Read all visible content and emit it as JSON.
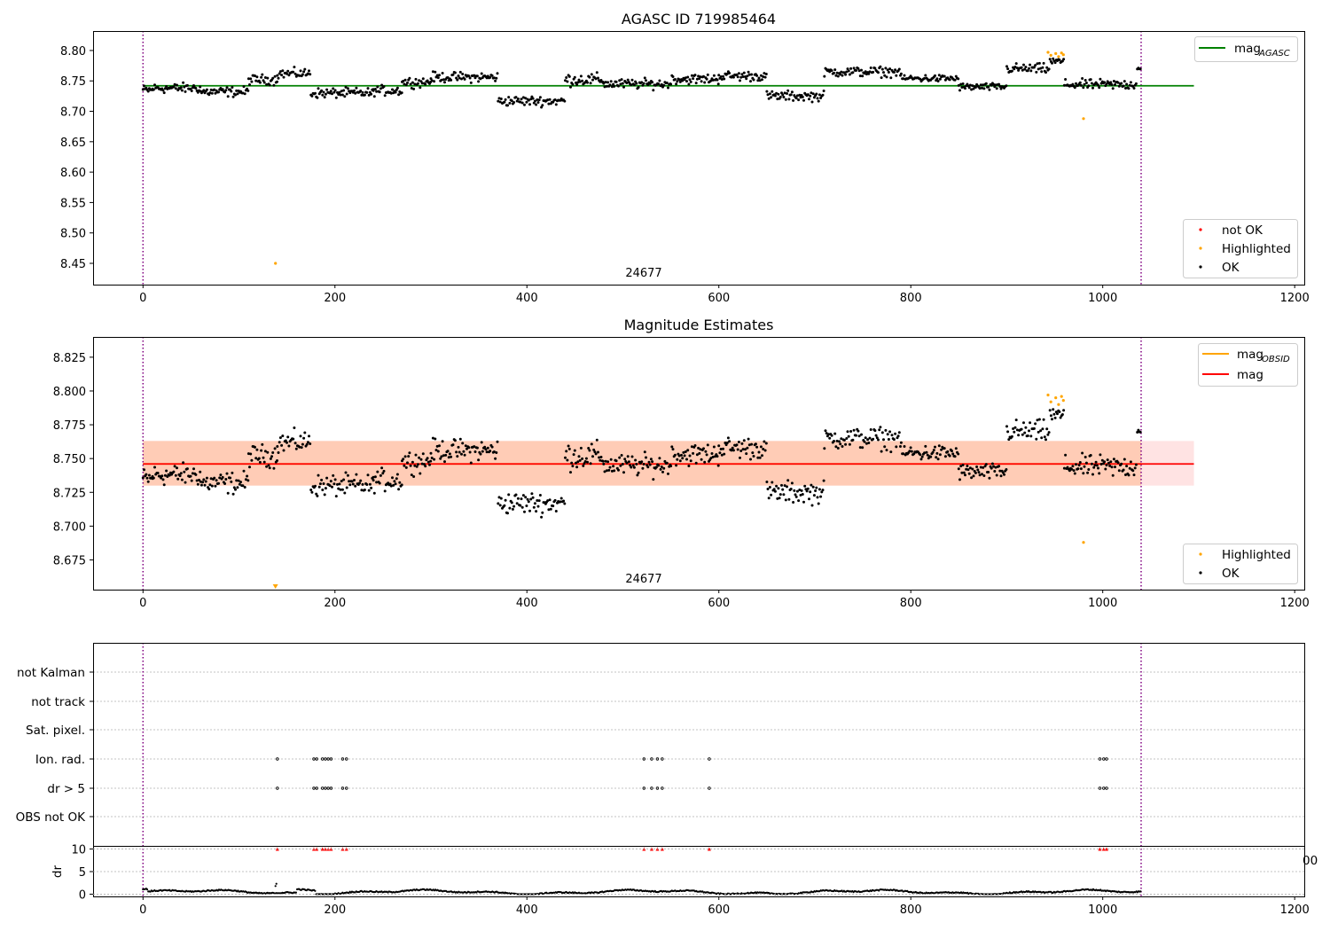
{
  "chart_data": [
    {
      "type": "scatter",
      "title": "AGASC ID 719985464",
      "obsid_label": "24677",
      "xlim": [
        -52,
        1210
      ],
      "ylim": [
        8.415,
        8.832
      ],
      "xticks": [
        "0",
        "200",
        "400",
        "600",
        "800",
        "1000",
        "1200"
      ],
      "yticks": [
        "8.45",
        "8.50",
        "8.55",
        "8.60",
        "8.65",
        "8.70",
        "8.75",
        "8.80"
      ],
      "vlines": [
        0,
        1040
      ],
      "hlines": [
        {
          "name": "magAGASC",
          "y": 8.742,
          "x_range": [
            0,
            1095
          ],
          "color": "#008000"
        }
      ],
      "legend_lines": [
        {
          "label_main": "mag",
          "label_sub": "AGASC",
          "color": "#008000"
        }
      ],
      "legend_points": [
        {
          "label": "not OK",
          "color": "#ff0000"
        },
        {
          "label": "Highlighted",
          "color": "#ffa500"
        },
        {
          "label": "OK",
          "color": "#000000"
        }
      ],
      "series": [
        {
          "name": "OK",
          "segments": [
            {
              "x_range": [
                0,
                10
              ],
              "base": 8.735,
              "noise": 0.008
            },
            {
              "x_range": [
                10,
                60
              ],
              "base": 8.738,
              "noise": 0.008
            },
            {
              "x_range": [
                60,
                110
              ],
              "base": 8.732,
              "noise": 0.008
            },
            {
              "x_range": [
                110,
                140
              ],
              "base": 8.752,
              "noise": 0.008
            },
            {
              "x_range": [
                140,
                175
              ],
              "base": 8.762,
              "noise": 0.008
            },
            {
              "x_range": [
                175,
                240
              ],
              "base": 8.73,
              "noise": 0.008
            },
            {
              "x_range": [
                240,
                270
              ],
              "base": 8.734,
              "noise": 0.008
            },
            {
              "x_range": [
                270,
                300
              ],
              "base": 8.748,
              "noise": 0.008
            },
            {
              "x_range": [
                300,
                370
              ],
              "base": 8.756,
              "noise": 0.008
            },
            {
              "x_range": [
                370,
                440
              ],
              "base": 8.717,
              "noise": 0.008
            },
            {
              "x_range": [
                440,
                480
              ],
              "base": 8.752,
              "noise": 0.01
            },
            {
              "x_range": [
                480,
                550
              ],
              "base": 8.745,
              "noise": 0.008
            },
            {
              "x_range": [
                550,
                600
              ],
              "base": 8.753,
              "noise": 0.008
            },
            {
              "x_range": [
                600,
                650
              ],
              "base": 8.758,
              "noise": 0.008
            },
            {
              "x_range": [
                650,
                710
              ],
              "base": 8.725,
              "noise": 0.008
            },
            {
              "x_range": [
                710,
                790
              ],
              "base": 8.765,
              "noise": 0.008
            },
            {
              "x_range": [
                790,
                850
              ],
              "base": 8.754,
              "noise": 0.006
            },
            {
              "x_range": [
                850,
                900
              ],
              "base": 8.74,
              "noise": 0.006
            },
            {
              "x_range": [
                900,
                945
              ],
              "base": 8.77,
              "noise": 0.008
            },
            {
              "x_range": [
                945,
                960
              ],
              "base": 8.782,
              "noise": 0.006
            },
            {
              "x_range": [
                960,
                1035
              ],
              "base": 8.744,
              "noise": 0.008
            },
            {
              "x_range": [
                1036,
                1040
              ],
              "base": 8.772,
              "noise": 0.005
            }
          ]
        },
        {
          "name": "Highlighted",
          "points": [
            [
              138,
              8.45
            ],
            [
              943,
              8.797
            ],
            [
              946,
              8.792
            ],
            [
              951,
              8.795
            ],
            [
              954,
              8.79
            ],
            [
              957,
              8.796
            ],
            [
              959,
              8.793
            ],
            [
              980,
              8.688
            ]
          ]
        }
      ]
    },
    {
      "type": "scatter",
      "title": "Magnitude Estimates",
      "obsid_label": "24677",
      "xlim": [
        -52,
        1210
      ],
      "ylim": [
        8.653,
        8.84
      ],
      "xticks": [
        "0",
        "200",
        "400",
        "600",
        "800",
        "1000",
        "1200"
      ],
      "yticks": [
        "8.675",
        "8.700",
        "8.725",
        "8.750",
        "8.775",
        "8.800",
        "8.825"
      ],
      "vlines": [
        0,
        1040
      ],
      "band": {
        "x_range": [
          0,
          1095
        ],
        "y_range": [
          8.73,
          8.763
        ]
      },
      "hlines": [
        {
          "name": "magOBSID",
          "y": 8.746,
          "x_range": [
            0,
            1040
          ],
          "color": "#ffa500"
        },
        {
          "name": "mag",
          "y": 8.746,
          "x_range": [
            0,
            1095
          ],
          "color": "#ff0000"
        }
      ],
      "legend_lines": [
        {
          "label_main": "mag",
          "label_sub": "OBSID",
          "color": "#ffa500"
        },
        {
          "label_main": "mag",
          "label_sub": "",
          "color": "#ff0000"
        }
      ],
      "legend_points": [
        {
          "label": "Highlighted",
          "color": "#ffa500"
        },
        {
          "label": "OK",
          "color": "#000000"
        }
      ],
      "series": [
        {
          "name": "OK",
          "same_as_panel": 0
        },
        {
          "name": "Highlighted",
          "points": [
            [
              943,
              8.797
            ],
            [
              946,
              8.792
            ],
            [
              951,
              8.795
            ],
            [
              954,
              8.79
            ],
            [
              957,
              8.796
            ],
            [
              959,
              8.793
            ],
            [
              980,
              8.688
            ]
          ]
        }
      ],
      "markers": [
        {
          "x": 138,
          "y": 8.655,
          "shape": "triangle-down",
          "color": "#ffa500"
        }
      ]
    },
    {
      "type": "scatter",
      "title": "",
      "xlim": [
        -52,
        1210
      ],
      "vlines": [
        0,
        1040
      ],
      "flag_rows": [
        "not Kalman",
        "not track",
        "Sat. pixel.",
        "Ion. rad.",
        "dr > 5",
        "OBS not OK"
      ],
      "flag_points": {
        "Ion. rad.": [
          140,
          178,
          181,
          187,
          190,
          193,
          196,
          208,
          212,
          522,
          530,
          536,
          541,
          590,
          997,
          1001,
          1004
        ],
        "dr > 5": [
          140,
          178,
          181,
          187,
          190,
          193,
          196,
          208,
          212,
          522,
          530,
          536,
          541,
          590,
          997,
          1001,
          1004
        ]
      },
      "dr_panel": {
        "ylabel": "dr",
        "ylim": [
          -0.5,
          10.5
        ],
        "yticks": [
          "0",
          "5",
          "10"
        ],
        "xticks": [
          "0",
          "200",
          "400",
          "600",
          "800",
          "1000",
          "1200"
        ],
        "overflow_markers": [
          140,
          178,
          181,
          187,
          190,
          193,
          196,
          208,
          212,
          522,
          530,
          536,
          541,
          590,
          997,
          1001,
          1004
        ],
        "overflow_color": "#ff0000",
        "clipped_tick": "00",
        "outlier_points": [
          [
            138,
            1.8
          ],
          [
            139,
            2.3
          ]
        ]
      }
    }
  ]
}
